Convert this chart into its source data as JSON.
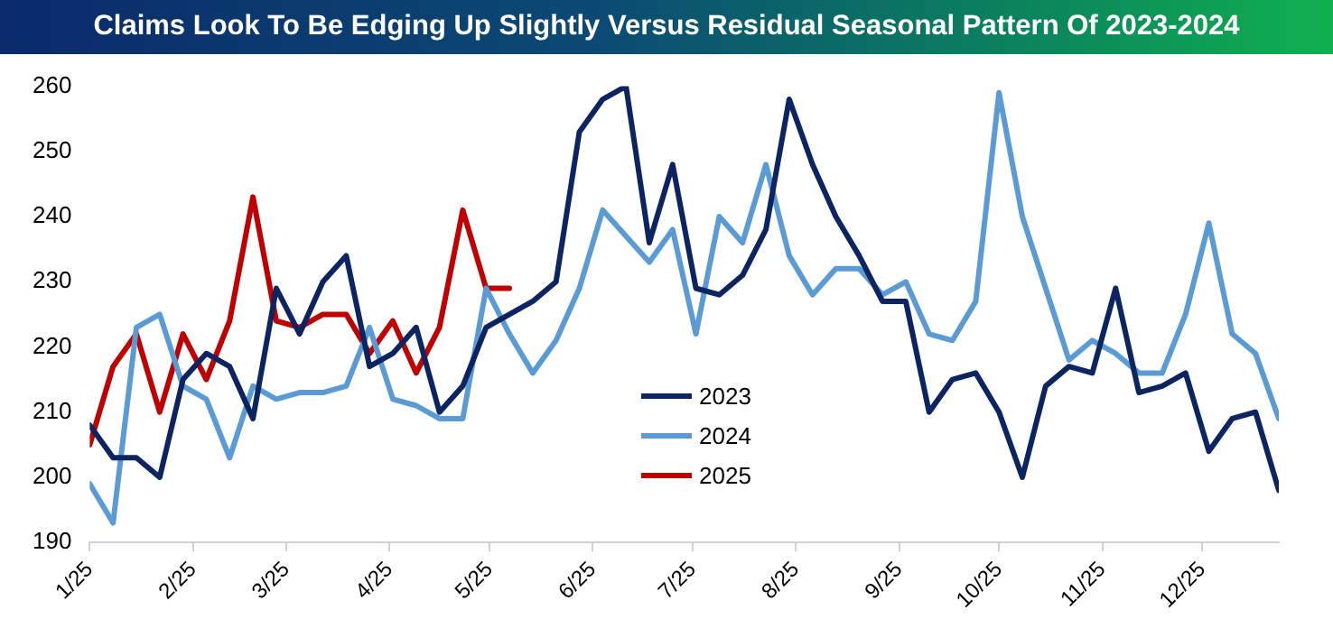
{
  "chart_data": {
    "type": "line",
    "title": "Claims Look To Be Edging Up Slightly Versus Residual Seasonal Pattern Of 2023-2024",
    "x": [
      "2025-01-25",
      "2025-02-01",
      "2025-02-08",
      "2025-02-15",
      "2025-02-22",
      "2025-03-01",
      "2025-03-08",
      "2025-03-15",
      "2025-03-22",
      "2025-03-29",
      "2025-04-05",
      "2025-04-12",
      "2025-04-19",
      "2025-04-26",
      "2025-05-03",
      "2025-05-10",
      "2025-05-17",
      "2025-05-24",
      "2025-05-31",
      "2025-06-07",
      "2025-06-14",
      "2025-06-21",
      "2025-06-28",
      "2025-07-05",
      "2025-07-12",
      "2025-07-19",
      "2025-07-26",
      "2025-08-02",
      "2025-08-09",
      "2025-08-16",
      "2025-08-23",
      "2025-08-30",
      "2025-09-06",
      "2025-09-13",
      "2025-09-20",
      "2025-09-27",
      "2025-10-04",
      "2025-10-11",
      "2025-10-18",
      "2025-10-25",
      "2025-11-01",
      "2025-11-08",
      "2025-11-15",
      "2025-11-22",
      "2025-11-29",
      "2025-12-06",
      "2025-12-13",
      "2025-12-20",
      "2025-12-27",
      "2026-01-03",
      "2026-01-10",
      "2026-01-17"
    ],
    "series": [
      {
        "name": "2023",
        "color": "#0c2461",
        "values": [
          208,
          203,
          203,
          200,
          215,
          219,
          217,
          209,
          229,
          222,
          230,
          234,
          217,
          219,
          223,
          210,
          214,
          223,
          225,
          227,
          230,
          253,
          258,
          260,
          236,
          248,
          229,
          228,
          231,
          238,
          258,
          248,
          240,
          234,
          227,
          227,
          210,
          215,
          216,
          210,
          200,
          214,
          217,
          216,
          229,
          213,
          214,
          216,
          204,
          209,
          210,
          198
        ]
      },
      {
        "name": "2024",
        "color": "#5b9bd5",
        "values": [
          199,
          193,
          223,
          225,
          214,
          212,
          203,
          214,
          212,
          213,
          213,
          214,
          223,
          212,
          211,
          209,
          209,
          229,
          222,
          216,
          221,
          229,
          241,
          237,
          233,
          238,
          222,
          240,
          236,
          248,
          234,
          228,
          232,
          232,
          228,
          230,
          222,
          221,
          227,
          259,
          240,
          229,
          218,
          221,
          219,
          216,
          216,
          225,
          239,
          222,
          219,
          209
        ]
      },
      {
        "name": "2025",
        "color": "#c00000",
        "x": [
          "2025-01-25",
          "2025-02-01",
          "2025-02-08",
          "2025-02-15",
          "2025-02-22",
          "2025-03-01",
          "2025-03-08",
          "2025-03-15",
          "2025-03-22",
          "2025-03-29",
          "2025-04-05",
          "2025-04-12",
          "2025-04-19",
          "2025-04-26",
          "2025-05-03",
          "2025-05-10",
          "2025-05-17",
          "2025-05-24",
          "2025-05-31"
        ],
        "values": [
          205,
          217,
          222,
          210,
          222,
          215,
          224,
          243,
          224,
          223,
          225,
          225,
          219,
          224,
          216,
          223,
          241,
          229,
          229
        ]
      }
    ],
    "xlim": [
      "2025-01-25",
      "2026-01-17"
    ],
    "xticks": [
      {
        "value": "2025-01-25",
        "label": "1/25"
      },
      {
        "value": "2025-02-25",
        "label": "2/25"
      },
      {
        "value": "2025-03-25",
        "label": "3/25"
      },
      {
        "value": "2025-04-25",
        "label": "4/25"
      },
      {
        "value": "2025-05-25",
        "label": "5/25"
      },
      {
        "value": "2025-06-25",
        "label": "6/25"
      },
      {
        "value": "2025-07-25",
        "label": "7/25"
      },
      {
        "value": "2025-08-25",
        "label": "8/25"
      },
      {
        "value": "2025-09-25",
        "label": "9/25"
      },
      {
        "value": "2025-10-25",
        "label": "10/25"
      },
      {
        "value": "2025-11-25",
        "label": "11/25"
      },
      {
        "value": "2025-12-25",
        "label": "12/25"
      }
    ],
    "ylim": [
      190,
      260
    ],
    "yticks": [
      190,
      200,
      210,
      220,
      230,
      240,
      250,
      260
    ],
    "grid": false,
    "legend": "bottom",
    "marker": "none",
    "line_style": "solid"
  }
}
